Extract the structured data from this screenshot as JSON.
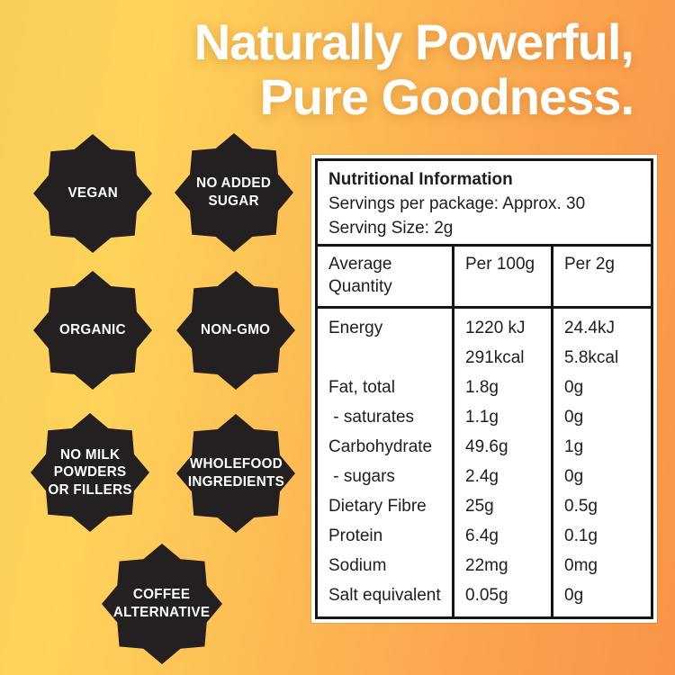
{
  "headline": {
    "line1": "Naturally Powerful,",
    "line2": "Pure Goodness."
  },
  "badges": [
    {
      "label": "VEGAN"
    },
    {
      "label": "NO ADDED\nSUGAR"
    },
    {
      "label": "ORGANIC"
    },
    {
      "label": "NON-GMO"
    },
    {
      "label": "NO MILK\nPOWDERS\nOR FILLERS"
    },
    {
      "label": "WHOLEFOOD\nINGREDIENTS"
    },
    {
      "label": "COFFEE\nALTERNATIVE"
    }
  ],
  "colors": {
    "gradient_left": "#fed25b",
    "gradient_right": "#fa9348",
    "badge_fill": "#241f21",
    "badge_text": "#ffffff",
    "headline_text": "#ffffff",
    "table_border": "#151515",
    "table_background": "#ffffff"
  },
  "nutrition_table": {
    "title": "Nutritional Information",
    "servings_per_package": "Servings per package: Approx. 30",
    "serving_size": "Serving Size: 2g",
    "columns": [
      "Average Quantity",
      "Per 100g",
      "Per 2g"
    ],
    "rows": [
      {
        "name": "Energy",
        "per_100g": "1220 kJ",
        "per_2g": "24.4kJ"
      },
      {
        "name": "",
        "per_100g": "291kcal",
        "per_2g": "5.8kcal"
      },
      {
        "name": "Fat, total",
        "per_100g": "1.8g",
        "per_2g": "0g"
      },
      {
        "name": " - saturates",
        "per_100g": "1.1g",
        "per_2g": "0g"
      },
      {
        "name": "Carbohydrate",
        "per_100g": "49.6g",
        "per_2g": "1g"
      },
      {
        "name": " - sugars",
        "per_100g": "2.4g",
        "per_2g": "0g"
      },
      {
        "name": "Dietary Fibre",
        "per_100g": "25g",
        "per_2g": "0.5g"
      },
      {
        "name": "Protein",
        "per_100g": "6.4g",
        "per_2g": "0.1g"
      },
      {
        "name": "Sodium",
        "per_100g": "22mg",
        "per_2g": "0mg"
      },
      {
        "name": "Salt equivalent",
        "per_100g": "0.05g",
        "per_2g": "0g"
      }
    ]
  }
}
